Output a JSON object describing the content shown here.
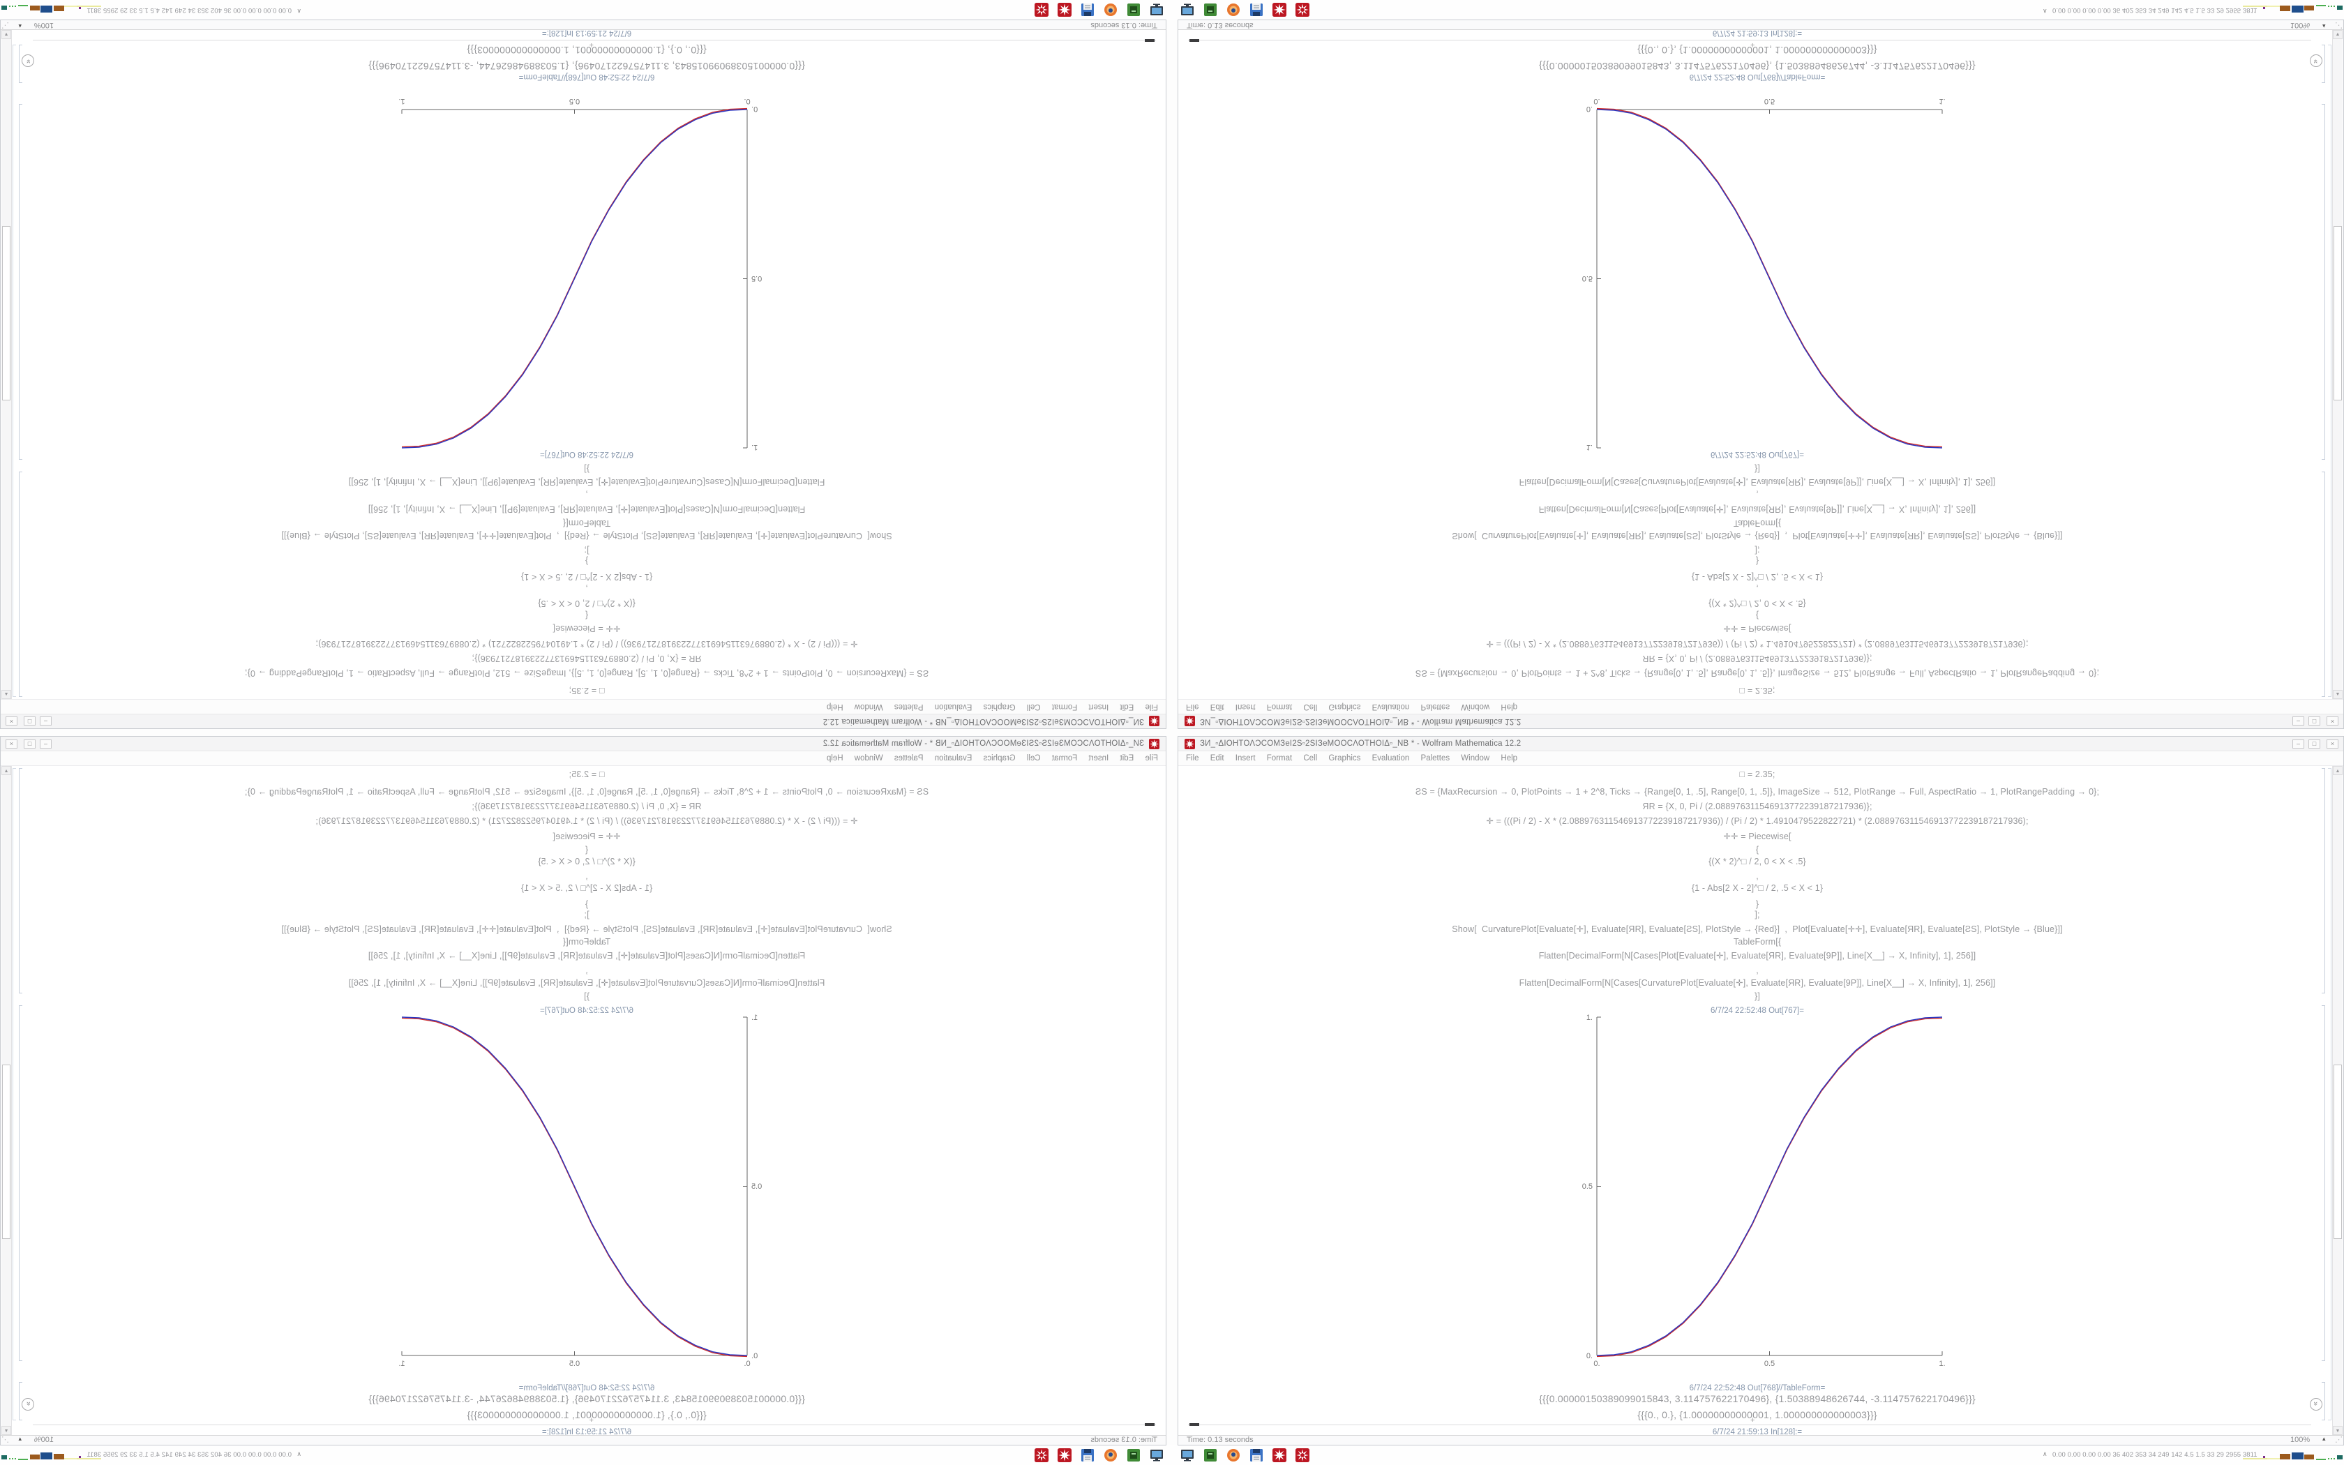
{
  "window": {
    "title": "ЗИ_▫ΔΙΟΗΤΟΛƆCOMЗеΙ2S▫2SΙЗеMOOCΛΟΤΗΟΙΔ▫_NB * - Wolfram Mathematica 12.2",
    "menu": [
      "File",
      "Edit",
      "Insert",
      "Format",
      "Cell",
      "Graphics",
      "Evaluation",
      "Palettes",
      "Window",
      "Help"
    ],
    "buttons": {
      "minimize": "–",
      "maximize": "□",
      "close": "×"
    }
  },
  "notebook": {
    "code_lines": [
      "□ = 2.35;",
      "ƧS = {MaxRecursion → 0, PlotPoints → 1 + 2^8, Ticks → {Range[0, 1, .5], Range[0, 1, .5]}, ImageSize → 512, PlotRange → Full, AspectRatio → 1, PlotRangePadding → 0};",
      "ЯR = {X, 0, Pi / (2.088976311546913772239187217936)};",
      "✛ = (((Pi / 2) - X * (2.088976311546913772239187217936)) / (Pi / 2) * 1.4910479522822721) * (2.088976311546913772239187217936);",
      "✛✛ = Piecewise[",
      "{",
      "{(X * 2)^□ / 2, 0 < X < .5}",
      ",",
      "{1 - Abs[2 X - 2]^□ / 2, .5 < X < 1}",
      "}",
      "];",
      "Show[  CurvaturePlot[Evaluate[✛], Evaluate[ЯR], Evaluate[ƧS], PlotStyle → {Red}]  ,  Plot[Evaluate[✛✛], Evaluate[ЯR], Evaluate[ƧS], PlotStyle → {Blue}]]",
      "TableForm[{",
      "Flatten[DecimalForm[N[Cases[Plot[Evaluate[✛], Evaluate[ЯR], Evaluate[9P]], Line[X__] → X, Infinity], 1], 256]]",
      ",",
      "Flatten[DecimalForm[N[Cases[CurvaturePlot[Evaluate[✛], Evaluate[ЯR], Evaluate[9P]], Line[X__] → X, Infinity], 1], 256]]",
      "}]"
    ],
    "out1_label": "6/7/24 22:52:48 Out[767]=",
    "out2_label": "6/7/24 22:52:48 Out[768]//TableForm=",
    "result_line1": "{{{0.00000150389099015843, 3.114757622170496}, {1.50388948626744, -3.114757622170496}}}",
    "result_line2": "{{{0., 0.}, {1.00000000000001, 1.000000000000003}}}",
    "in_label": "6/7/24 21:59:13 In[128]:=",
    "insert_plus": "+"
  },
  "chart_data": {
    "type": "line",
    "title": "",
    "xlabel": "",
    "ylabel": "",
    "xlim": [
      0,
      1
    ],
    "ylim": [
      0,
      1
    ],
    "grid": false,
    "legend": "none",
    "xticks": [
      "0.",
      "0.5",
      "1."
    ],
    "yticks": [
      "1.",
      "0.5",
      "0."
    ],
    "series": [
      {
        "name": "CurvaturePlot (Red)",
        "color": "#cc2a2a"
      },
      {
        "name": "Plot (Blue)",
        "color": "#2a35c0"
      }
    ],
    "points": [
      [
        0,
        0
      ],
      [
        0.05,
        0.002
      ],
      [
        0.1,
        0.011
      ],
      [
        0.15,
        0.03
      ],
      [
        0.2,
        0.058
      ],
      [
        0.25,
        0.098
      ],
      [
        0.3,
        0.151
      ],
      [
        0.35,
        0.216
      ],
      [
        0.4,
        0.296
      ],
      [
        0.45,
        0.39
      ],
      [
        0.5,
        0.5
      ],
      [
        0.55,
        0.61
      ],
      [
        0.6,
        0.704
      ],
      [
        0.65,
        0.784
      ],
      [
        0.7,
        0.849
      ],
      [
        0.75,
        0.902
      ],
      [
        0.8,
        0.942
      ],
      [
        0.85,
        0.971
      ],
      [
        0.9,
        0.989
      ],
      [
        0.95,
        0.998
      ],
      [
        1,
        1
      ]
    ]
  },
  "status": {
    "time_text": "Time: 0.13 seconds",
    "zoom_text": "100%",
    "zoom_caret": "▴",
    "grip": "⋰"
  },
  "scrollbar": {
    "up": "▲",
    "down": "▼"
  },
  "elevator": {
    "glyph": "»"
  },
  "taskbar": {
    "icons": [
      "display-icon",
      "green-app-icon",
      "firefox-icon",
      "save-disk-icon",
      "mathematica-icon",
      "mathematica-alt-icon"
    ]
  },
  "tray": {
    "chevron": "∧",
    "stats": "0.00 0.00 0.00 0.00 36 402 353 34 249 142 4.5 1.5 33 29 2955 3811"
  }
}
